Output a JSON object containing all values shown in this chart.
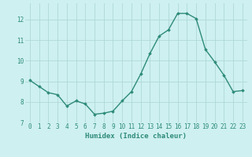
{
  "x": [
    0,
    1,
    2,
    3,
    4,
    5,
    6,
    7,
    8,
    9,
    10,
    11,
    12,
    13,
    14,
    15,
    16,
    17,
    18,
    19,
    20,
    21,
    22,
    23
  ],
  "y": [
    9.05,
    8.75,
    8.45,
    8.35,
    7.8,
    8.05,
    7.9,
    7.4,
    7.45,
    7.55,
    8.05,
    8.5,
    9.35,
    10.35,
    11.2,
    11.5,
    12.3,
    12.3,
    12.05,
    10.55,
    9.95,
    9.3,
    8.5,
    8.55
  ],
  "xlabel": "Humidex (Indice chaleur)",
  "xlim": [
    -0.5,
    23.5
  ],
  "ylim": [
    7.0,
    12.8
  ],
  "yticks": [
    7,
    8,
    9,
    10,
    11,
    12
  ],
  "xticks": [
    0,
    1,
    2,
    3,
    4,
    5,
    6,
    7,
    8,
    9,
    10,
    11,
    12,
    13,
    14,
    15,
    16,
    17,
    18,
    19,
    20,
    21,
    22,
    23
  ],
  "line_color": "#2e8b7a",
  "marker": "D",
  "marker_size": 1.8,
  "bg_color": "#cef0f0",
  "grid_color": "#b0d8d8",
  "label_color": "#2e8b7a",
  "tick_color": "#2e8b7a",
  "tick_fontsize": 5.5,
  "xlabel_fontsize": 6.5,
  "linewidth": 1.0
}
